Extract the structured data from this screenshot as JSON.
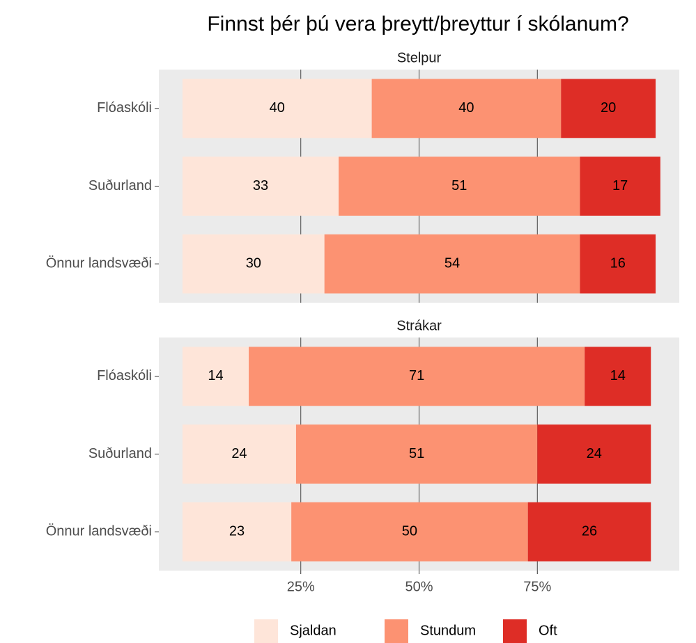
{
  "chart_data": {
    "type": "bar",
    "orientation": "horizontal",
    "stacked": true,
    "title": "Finnst þér þú vera þreytt/þreyttur í skólanum?",
    "xlim": [
      -5,
      105
    ],
    "xticks": [
      {
        "value": 25,
        "label": "25%"
      },
      {
        "value": 50,
        "label": "50%"
      },
      {
        "value": 75,
        "label": "75%"
      }
    ],
    "grid": true,
    "legend": "bottom",
    "panels": [
      {
        "title": "Stelpur",
        "categories": [
          "Flóaskóli",
          "Suðurland",
          "Önnur landsvæði"
        ],
        "series": [
          {
            "name": "Sjaldan",
            "color": "#fee5d9",
            "values": [
              40,
              33,
              30
            ]
          },
          {
            "name": "Stundum",
            "color": "#fc9272",
            "values": [
              40,
              51,
              54
            ]
          },
          {
            "name": "Oft",
            "color": "#de2d26",
            "values": [
              20,
              17,
              16
            ]
          }
        ]
      },
      {
        "title": "Strákar",
        "categories": [
          "Flóaskóli",
          "Suðurland",
          "Önnur landsvæði"
        ],
        "series": [
          {
            "name": "Sjaldan",
            "color": "#fee5d9",
            "values": [
              14,
              24,
              23
            ]
          },
          {
            "name": "Stundum",
            "color": "#fc9272",
            "values": [
              71,
              51,
              50
            ]
          },
          {
            "name": "Oft",
            "color": "#de2d26",
            "values": [
              14,
              24,
              26
            ]
          }
        ]
      }
    ]
  }
}
